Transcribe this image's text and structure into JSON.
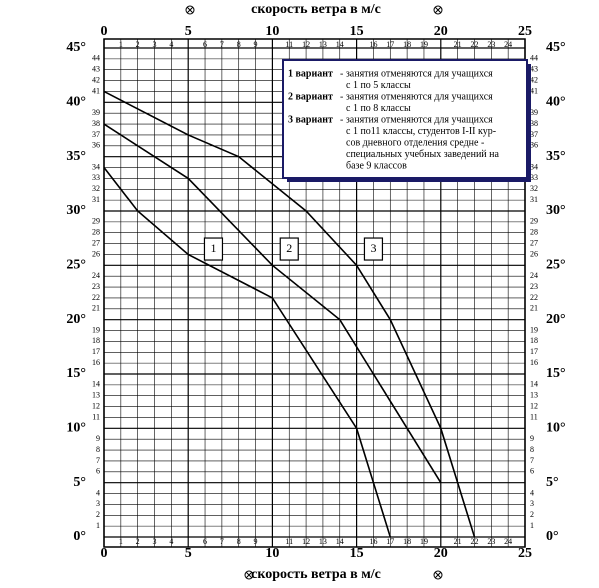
{
  "chart_data": {
    "type": "line",
    "xlabel": "скорость ветра в м/с",
    "xlim": [
      0,
      25
    ],
    "ylim": [
      0,
      45
    ],
    "xticks": [
      0,
      5,
      10,
      15,
      20,
      25
    ],
    "xminor_ticks": [
      1,
      2,
      3,
      4,
      6,
      7,
      8,
      9,
      11,
      12,
      13,
      14,
      16,
      17,
      18,
      19,
      21,
      22,
      23,
      24
    ],
    "yticks": [
      {
        "value": 0,
        "label": "0°"
      },
      {
        "value": 5,
        "label": "5°"
      },
      {
        "value": 10,
        "label": "10°"
      },
      {
        "value": 15,
        "label": "15°"
      },
      {
        "value": 20,
        "label": "20°"
      },
      {
        "value": 25,
        "label": "25°"
      },
      {
        "value": 30,
        "label": "30°"
      },
      {
        "value": 35,
        "label": "35°"
      },
      {
        "value": 40,
        "label": "40°"
      },
      {
        "value": 45,
        "label": "45°"
      }
    ],
    "yminor_ticks": [
      1,
      2,
      3,
      4,
      6,
      7,
      8,
      9,
      11,
      12,
      13,
      14,
      16,
      17,
      18,
      19,
      21,
      22,
      23,
      24,
      26,
      27,
      28,
      29,
      31,
      32,
      33,
      34,
      36,
      37,
      38,
      39,
      41,
      42,
      43,
      44
    ],
    "grid": true,
    "series": [
      {
        "name": "1",
        "color": "#000000",
        "x": [
          0,
          2,
          5,
          10,
          15,
          17
        ],
        "values": [
          34,
          30,
          26,
          22,
          10,
          0
        ],
        "label_at": [
          6.5,
          26.5
        ]
      },
      {
        "name": "2",
        "color": "#000000",
        "x": [
          0,
          5,
          10,
          14,
          16,
          20
        ],
        "values": [
          38,
          33,
          25,
          20,
          15,
          5
        ],
        "label_at": [
          11,
          26.5
        ]
      },
      {
        "name": "3",
        "color": "#000000",
        "x": [
          0,
          5,
          8,
          12,
          15,
          17,
          20,
          22
        ],
        "values": [
          41,
          37,
          35,
          30,
          25,
          20,
          10,
          0
        ],
        "label_at": [
          16,
          26.5
        ]
      }
    ],
    "annotations": [
      {
        "title": "1 вариант",
        "lines": [
          "- занятия отменяются  для учащихся",
          "с 1 по 5 классы"
        ]
      },
      {
        "title": "2 вариант",
        "lines": [
          "- занятия отменяются  для учащихся",
          "с 1 по 8 классы"
        ]
      },
      {
        "title": "3 вариант",
        "lines": [
          "- занятия отменяются  для учащихся",
          "с 1 по11 классы,  студентов I-II кур-",
          "сов дневного отделения  средне -",
          "специальных учебных заведений на",
          "базе 9 классов"
        ]
      }
    ]
  }
}
